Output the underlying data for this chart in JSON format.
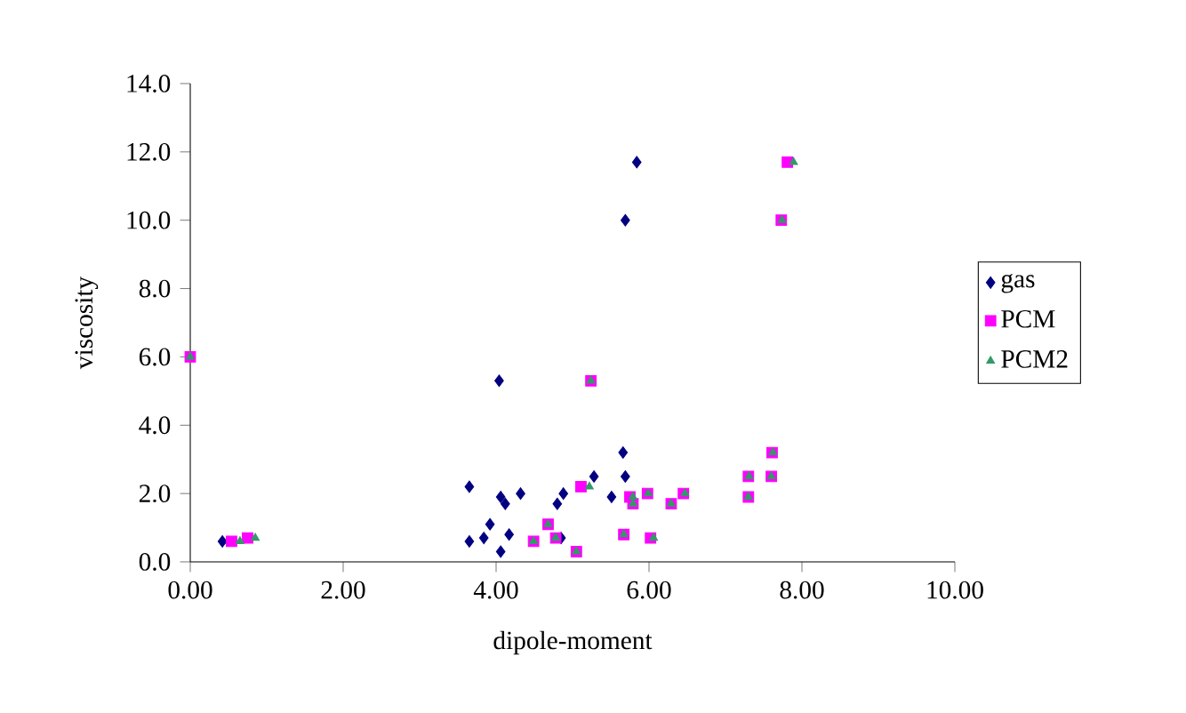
{
  "chart_data": {
    "type": "scatter",
    "xlabel": "dipole-moment",
    "ylabel": "viscosity",
    "xlim": [
      0,
      10
    ],
    "ylim": [
      0,
      14
    ],
    "xticks": [
      {
        "value": 0,
        "label": "0.00"
      },
      {
        "value": 2,
        "label": "2.00"
      },
      {
        "value": 4,
        "label": "4.00"
      },
      {
        "value": 6,
        "label": "6.00"
      },
      {
        "value": 8,
        "label": "8.00"
      },
      {
        "value": 10,
        "label": "10.00"
      }
    ],
    "yticks": [
      {
        "value": 0,
        "label": "0.0"
      },
      {
        "value": 2,
        "label": "2.0"
      },
      {
        "value": 4,
        "label": "4.0"
      },
      {
        "value": 6,
        "label": "6.0"
      },
      {
        "value": 8,
        "label": "8.0"
      },
      {
        "value": 10,
        "label": "10.0"
      },
      {
        "value": 12,
        "label": "12.0"
      },
      {
        "value": 14,
        "label": "14.0"
      }
    ],
    "legend": "right",
    "grid": false,
    "series": [
      {
        "name": "gas",
        "color": "#000080",
        "marker": "diamond",
        "x": [
          0.42,
          3.65,
          4.04,
          3.65,
          3.84,
          3.92,
          4.06,
          4.17,
          4.06,
          4.12,
          4.32,
          4.8,
          4.88,
          4.85,
          5.28,
          5.51,
          5.66,
          5.69,
          5.84,
          5.69
        ],
        "values": [
          0.6,
          2.2,
          5.3,
          0.6,
          0.7,
          1.1,
          0.3,
          0.8,
          1.9,
          1.7,
          2.0,
          1.7,
          2.0,
          0.7,
          2.5,
          1.9,
          3.2,
          2.5,
          11.7,
          10.0
        ]
      },
      {
        "name": "PCM",
        "color": "#ff00ff",
        "marker": "square",
        "x": [
          0.0,
          0.54,
          0.75,
          4.49,
          4.68,
          4.78,
          5.05,
          5.24,
          5.11,
          5.75,
          5.79,
          5.67,
          5.98,
          6.02,
          6.29,
          6.45,
          7.3,
          7.3,
          7.6,
          7.61,
          7.81,
          7.73
        ],
        "values": [
          6.0,
          0.6,
          0.7,
          0.6,
          1.1,
          0.7,
          0.3,
          5.3,
          2.2,
          1.9,
          1.7,
          0.8,
          2.0,
          0.7,
          1.7,
          2.0,
          1.9,
          2.5,
          2.5,
          3.2,
          11.7,
          10.0
        ]
      },
      {
        "name": "PCM2",
        "color": "#339966",
        "marker": "triangle",
        "x": [
          0.0,
          0.65,
          0.85,
          4.49,
          4.68,
          4.78,
          5.05,
          5.24,
          5.22,
          5.79,
          5.79,
          5.67,
          5.99,
          6.06,
          6.29,
          6.47,
          7.3,
          7.31,
          7.6,
          7.62,
          7.89,
          7.74
        ],
        "values": [
          6.0,
          0.6,
          0.7,
          0.6,
          1.1,
          0.7,
          0.3,
          5.3,
          2.2,
          1.9,
          1.7,
          0.8,
          2.0,
          0.7,
          1.7,
          2.0,
          1.9,
          2.5,
          2.5,
          3.2,
          11.7,
          10.0
        ]
      }
    ]
  }
}
